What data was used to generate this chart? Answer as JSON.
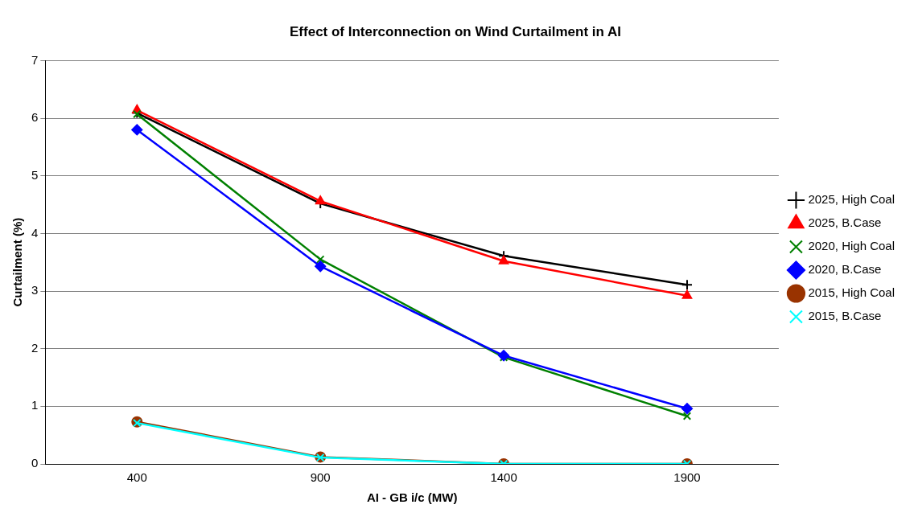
{
  "chart_data": {
    "type": "line",
    "title": "Effect of Interconnection on Wind Curtailment in AI",
    "xlabel": "AI - GB i/c (MW)",
    "ylabel": "Curtailment (%)",
    "categories": [
      "400",
      "900",
      "1400",
      "1900"
    ],
    "series": [
      {
        "name": "2025, High Coal",
        "color": "#000000",
        "marker": "cross",
        "values": [
          6.09,
          4.52,
          3.61,
          3.11
        ]
      },
      {
        "name": "2025, B.Case",
        "color": "#ff0000",
        "marker": "triangle",
        "values": [
          6.14,
          4.56,
          3.52,
          2.92
        ]
      },
      {
        "name": "2020, High Coal",
        "color": "#008000",
        "marker": "x",
        "values": [
          6.07,
          3.55,
          1.85,
          0.83
        ]
      },
      {
        "name": "2020, B.Case",
        "color": "#0000ff",
        "marker": "diamond",
        "values": [
          5.8,
          3.43,
          1.88,
          0.96
        ]
      },
      {
        "name": "2015, High Coal",
        "color": "#993300",
        "marker": "circle",
        "values": [
          0.73,
          0.12,
          0,
          0
        ]
      },
      {
        "name": "2015, B.Case",
        "color": "#00ffff",
        "marker": "x",
        "values": [
          0.71,
          0.11,
          0,
          0
        ]
      }
    ],
    "ylim": [
      0,
      7
    ],
    "yticks": [
      0,
      1,
      2,
      3,
      4,
      5,
      6,
      7
    ],
    "grid": "y",
    "legend": "right",
    "line_style": "solid"
  }
}
